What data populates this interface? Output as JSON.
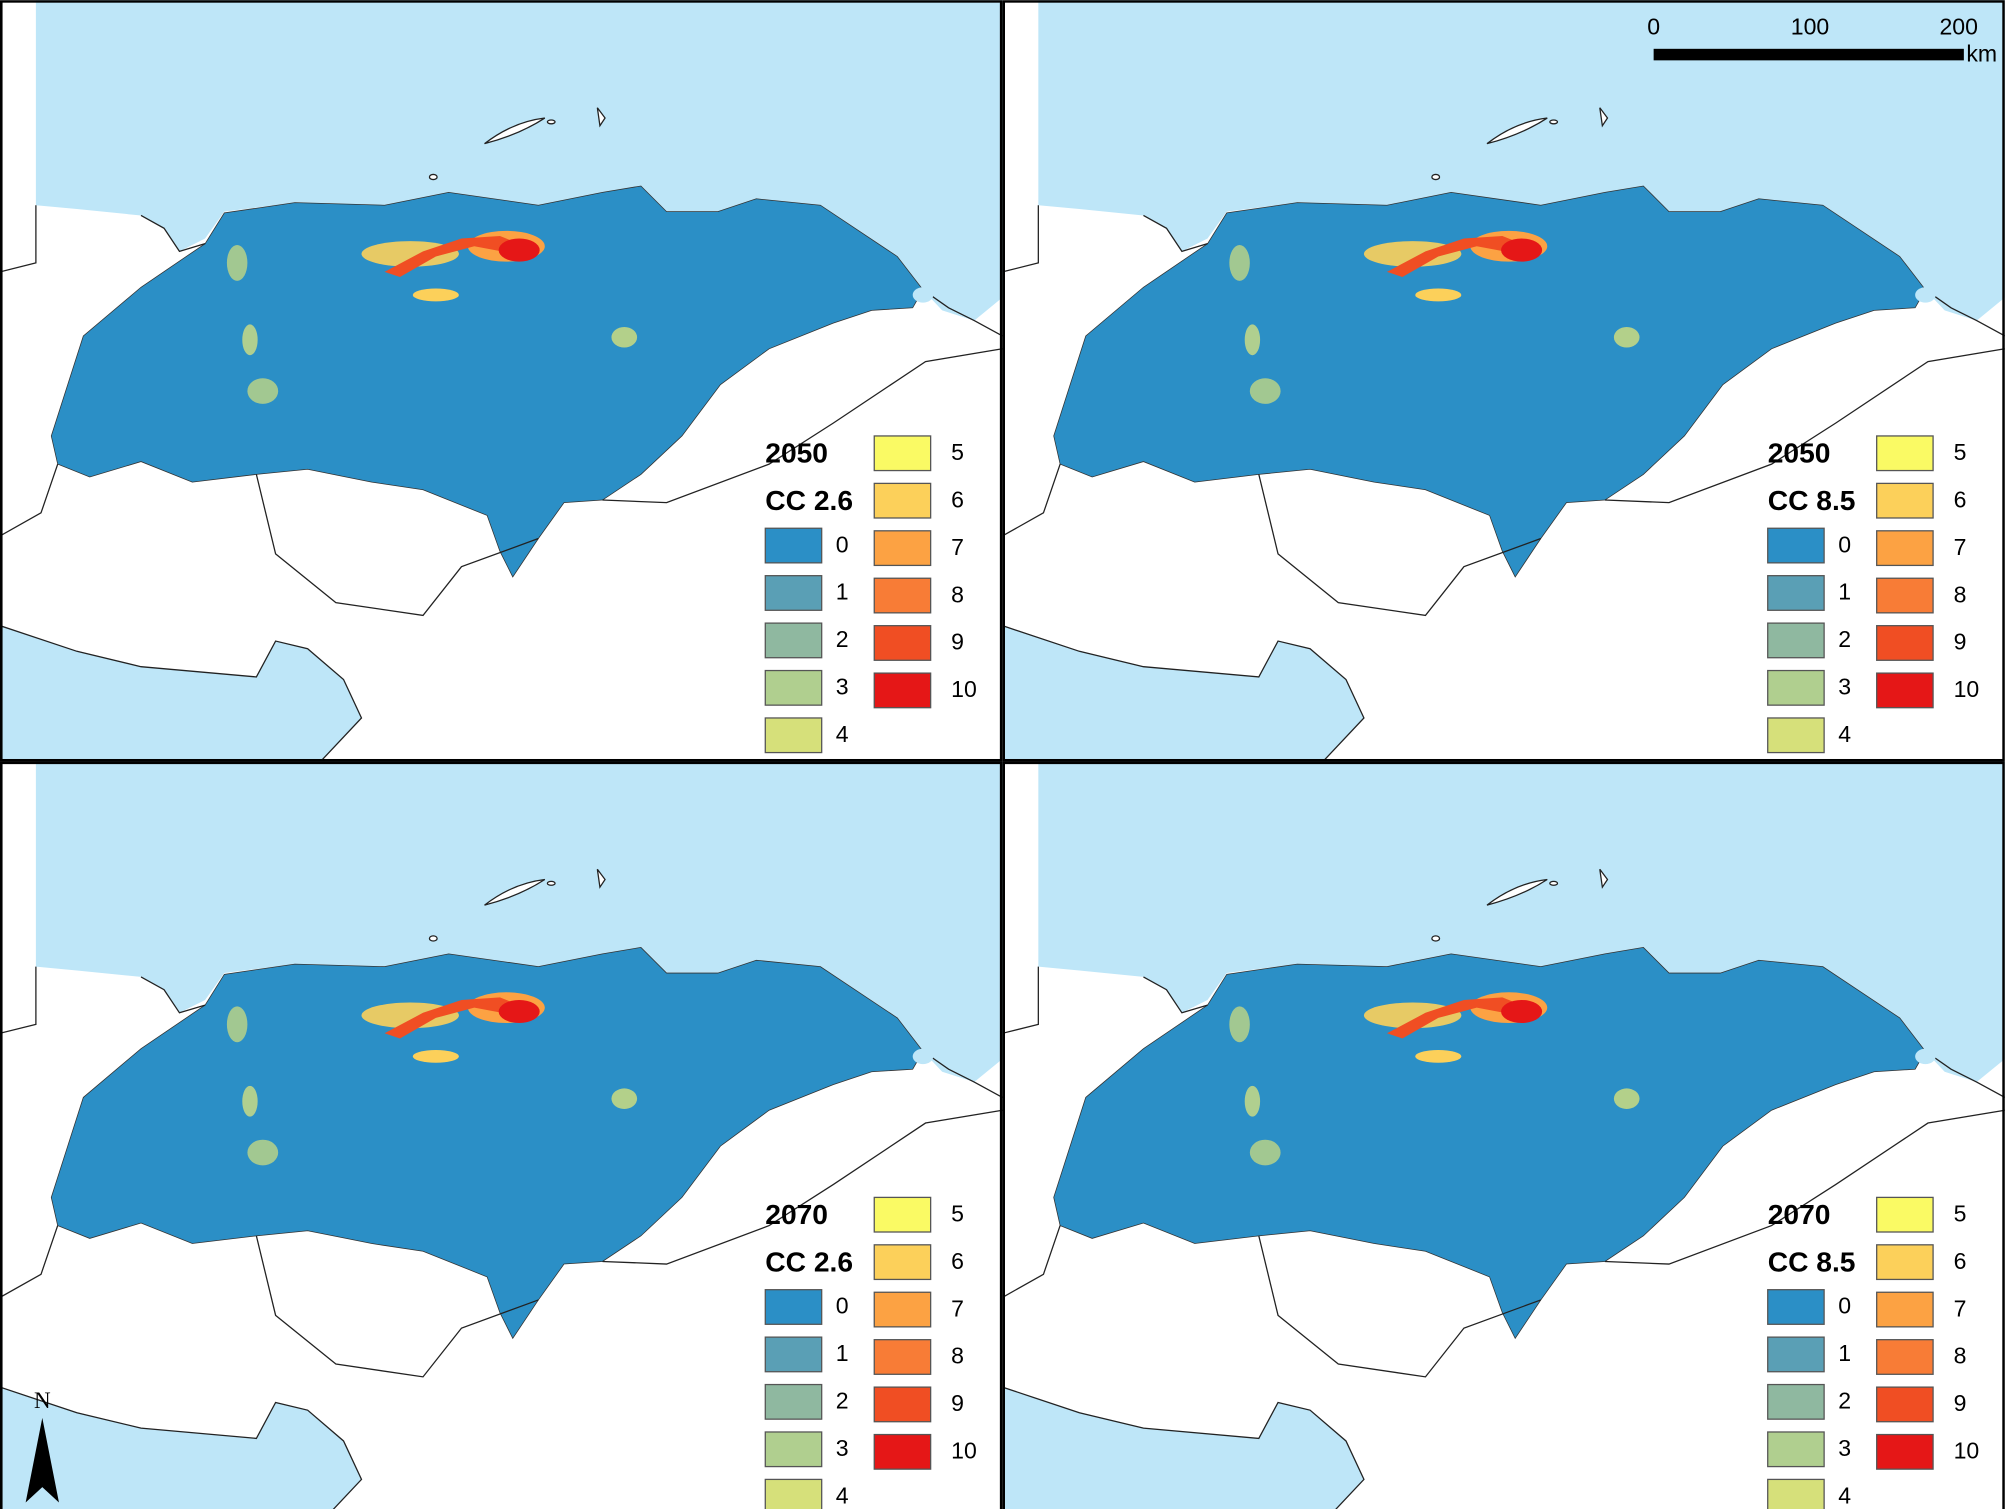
{
  "panels": [
    {
      "year": "2050",
      "scenario": "CC 2.6"
    },
    {
      "year": "2050",
      "scenario": "CC 8.5"
    },
    {
      "year": "2070",
      "scenario": "CC 2.6"
    },
    {
      "year": "2070",
      "scenario": "CC 8.5"
    }
  ],
  "legend": {
    "classes": [
      {
        "label": "0",
        "color": "#2b8fc6"
      },
      {
        "label": "1",
        "color": "#5a9fb5"
      },
      {
        "label": "2",
        "color": "#8fb8a0"
      },
      {
        "label": "3",
        "color": "#b0cf8f"
      },
      {
        "label": "4",
        "color": "#d6e07a"
      },
      {
        "label": "5",
        "color": "#fafa64"
      },
      {
        "label": "6",
        "color": "#fcd05a"
      },
      {
        "label": "7",
        "color": "#fca243"
      },
      {
        "label": "8",
        "color": "#f87c36"
      },
      {
        "label": "9",
        "color": "#f04e23"
      },
      {
        "label": "10",
        "color": "#e51717"
      }
    ]
  },
  "scale_bar": {
    "ticks": [
      "0",
      "100",
      "200"
    ],
    "unit": "km"
  },
  "north_arrow": "N"
}
